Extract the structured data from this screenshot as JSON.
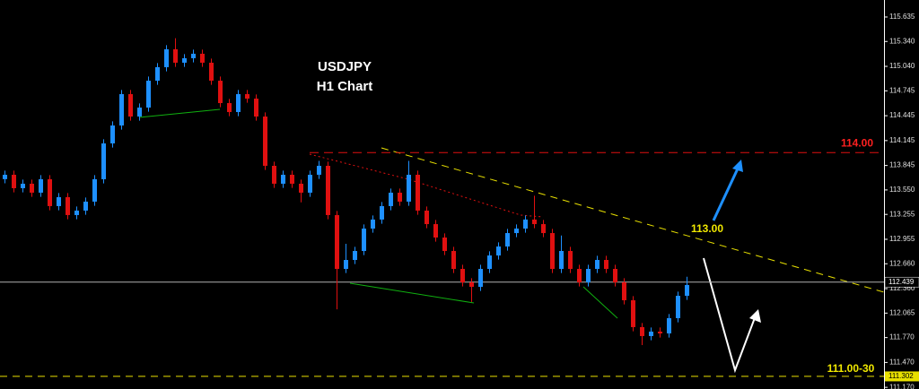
{
  "chart_data": {
    "type": "candlestick",
    "title": "USDJPY",
    "subtitle": "H1 Chart",
    "up_color": "#1e90ff",
    "down_color": "#e01010",
    "open": [
      113.68,
      113.733,
      113.571,
      113.625,
      113.517,
      113.679,
      113.355,
      113.463,
      113.247,
      113.301,
      113.409,
      113.679,
      114.111,
      114.327,
      114.705,
      114.435,
      114.543,
      114.867,
      115.03,
      115.246,
      115.084,
      115.138,
      115.192,
      115.084,
      114.867,
      114.597,
      114.489,
      114.705,
      114.651,
      114.435,
      113.841,
      113.625,
      113.733,
      113.625,
      113.517,
      113.733,
      113.841,
      113.247,
      112.598,
      112.706,
      112.814,
      113.084,
      113.193,
      113.355,
      113.517,
      113.409,
      113.733,
      113.301,
      113.138,
      112.976,
      112.814,
      112.598,
      112.436,
      112.382,
      112.598,
      112.76,
      112.868,
      113.03,
      113.084,
      113.193,
      113.138,
      113.03,
      112.598,
      112.814,
      112.598,
      112.436,
      112.598,
      112.706,
      112.598,
      112.436,
      112.22,
      111.896,
      111.788,
      111.842,
      111.82,
      112.004,
      112.274
    ],
    "high": [
      113.783,
      113.783,
      113.675,
      113.675,
      113.729,
      113.729,
      113.513,
      113.513,
      113.351,
      113.459,
      113.729,
      114.161,
      114.377,
      114.755,
      114.755,
      114.593,
      114.917,
      115.08,
      115.296,
      115.38,
      115.188,
      115.242,
      115.242,
      115.134,
      114.917,
      114.647,
      114.755,
      114.755,
      114.701,
      114.485,
      113.891,
      113.783,
      113.783,
      113.675,
      113.783,
      113.9,
      113.891,
      113.297,
      112.9,
      112.864,
      113.134,
      113.243,
      113.405,
      113.567,
      113.567,
      113.9,
      113.783,
      113.351,
      113.188,
      113.026,
      112.864,
      112.648,
      112.486,
      112.648,
      112.81,
      112.918,
      113.08,
      113.134,
      113.243,
      113.48,
      113.188,
      113.08,
      113.0,
      112.864,
      112.648,
      112.648,
      112.756,
      112.756,
      112.648,
      112.486,
      112.27,
      111.946,
      111.892,
      111.892,
      112.054,
      112.324,
      112.504
    ],
    "low": [
      113.63,
      113.521,
      113.521,
      113.467,
      113.467,
      113.305,
      113.305,
      113.197,
      113.197,
      113.251,
      113.359,
      113.629,
      114.061,
      114.277,
      114.385,
      114.385,
      114.493,
      114.817,
      114.98,
      115.034,
      115.034,
      115.088,
      115.034,
      114.817,
      114.547,
      114.439,
      114.439,
      114.601,
      114.385,
      113.791,
      113.575,
      113.575,
      113.575,
      113.4,
      113.467,
      113.683,
      113.197,
      112.11,
      112.548,
      112.656,
      112.764,
      113.034,
      113.143,
      113.305,
      113.359,
      113.359,
      113.251,
      113.088,
      112.926,
      112.764,
      112.548,
      112.386,
      112.2,
      112.332,
      112.548,
      112.71,
      112.818,
      112.98,
      113.034,
      113.088,
      112.98,
      112.548,
      112.548,
      112.548,
      112.386,
      112.386,
      112.548,
      112.548,
      112.386,
      112.17,
      111.846,
      111.68,
      111.738,
      111.77,
      111.77,
      111.954,
      112.224
    ],
    "close": [
      113.733,
      113.571,
      113.625,
      113.517,
      113.679,
      113.355,
      113.463,
      113.247,
      113.301,
      113.409,
      113.679,
      114.111,
      114.327,
      114.705,
      114.435,
      114.543,
      114.867,
      115.03,
      115.246,
      115.084,
      115.138,
      115.192,
      115.084,
      114.867,
      114.597,
      114.489,
      114.705,
      114.651,
      114.435,
      113.841,
      113.625,
      113.733,
      113.625,
      113.517,
      113.733,
      113.841,
      113.247,
      112.598,
      112.706,
      112.814,
      113.084,
      113.193,
      113.355,
      113.517,
      113.409,
      113.733,
      113.301,
      113.138,
      112.976,
      112.814,
      112.598,
      112.436,
      112.382,
      112.598,
      112.76,
      112.868,
      113.03,
      113.084,
      113.193,
      113.138,
      113.03,
      112.598,
      112.814,
      112.598,
      112.436,
      112.598,
      112.706,
      112.598,
      112.436,
      112.22,
      111.896,
      111.788,
      111.842,
      111.82,
      112.004,
      112.274,
      112.404
    ],
    "ylim": [
      111.15,
      115.84
    ],
    "yticks": [
      115.635,
      {
        "value": 115.34,
        "label": "115.340"
      },
      {
        "value": 115.04,
        "label": "115.040"
      },
      114.745,
      114.445,
      114.145,
      113.845,
      {
        "value": 113.55,
        "label": "113.550"
      },
      113.255,
      112.955,
      {
        "value": 112.66,
        "label": "112.660"
      },
      {
        "value": 112.36,
        "label": "112.360"
      },
      112.065,
      {
        "value": 111.77,
        "label": "111.770"
      },
      {
        "value": 111.47,
        "label": "111.470"
      },
      {
        "value": 111.17,
        "label": "111.170"
      }
    ],
    "resistance_level": {
      "value": 114,
      "label": "114.00"
    },
    "target_label": "113.00",
    "support_label": "111.00-30",
    "support_price": 111.302,
    "last_price": 112.439
  }
}
